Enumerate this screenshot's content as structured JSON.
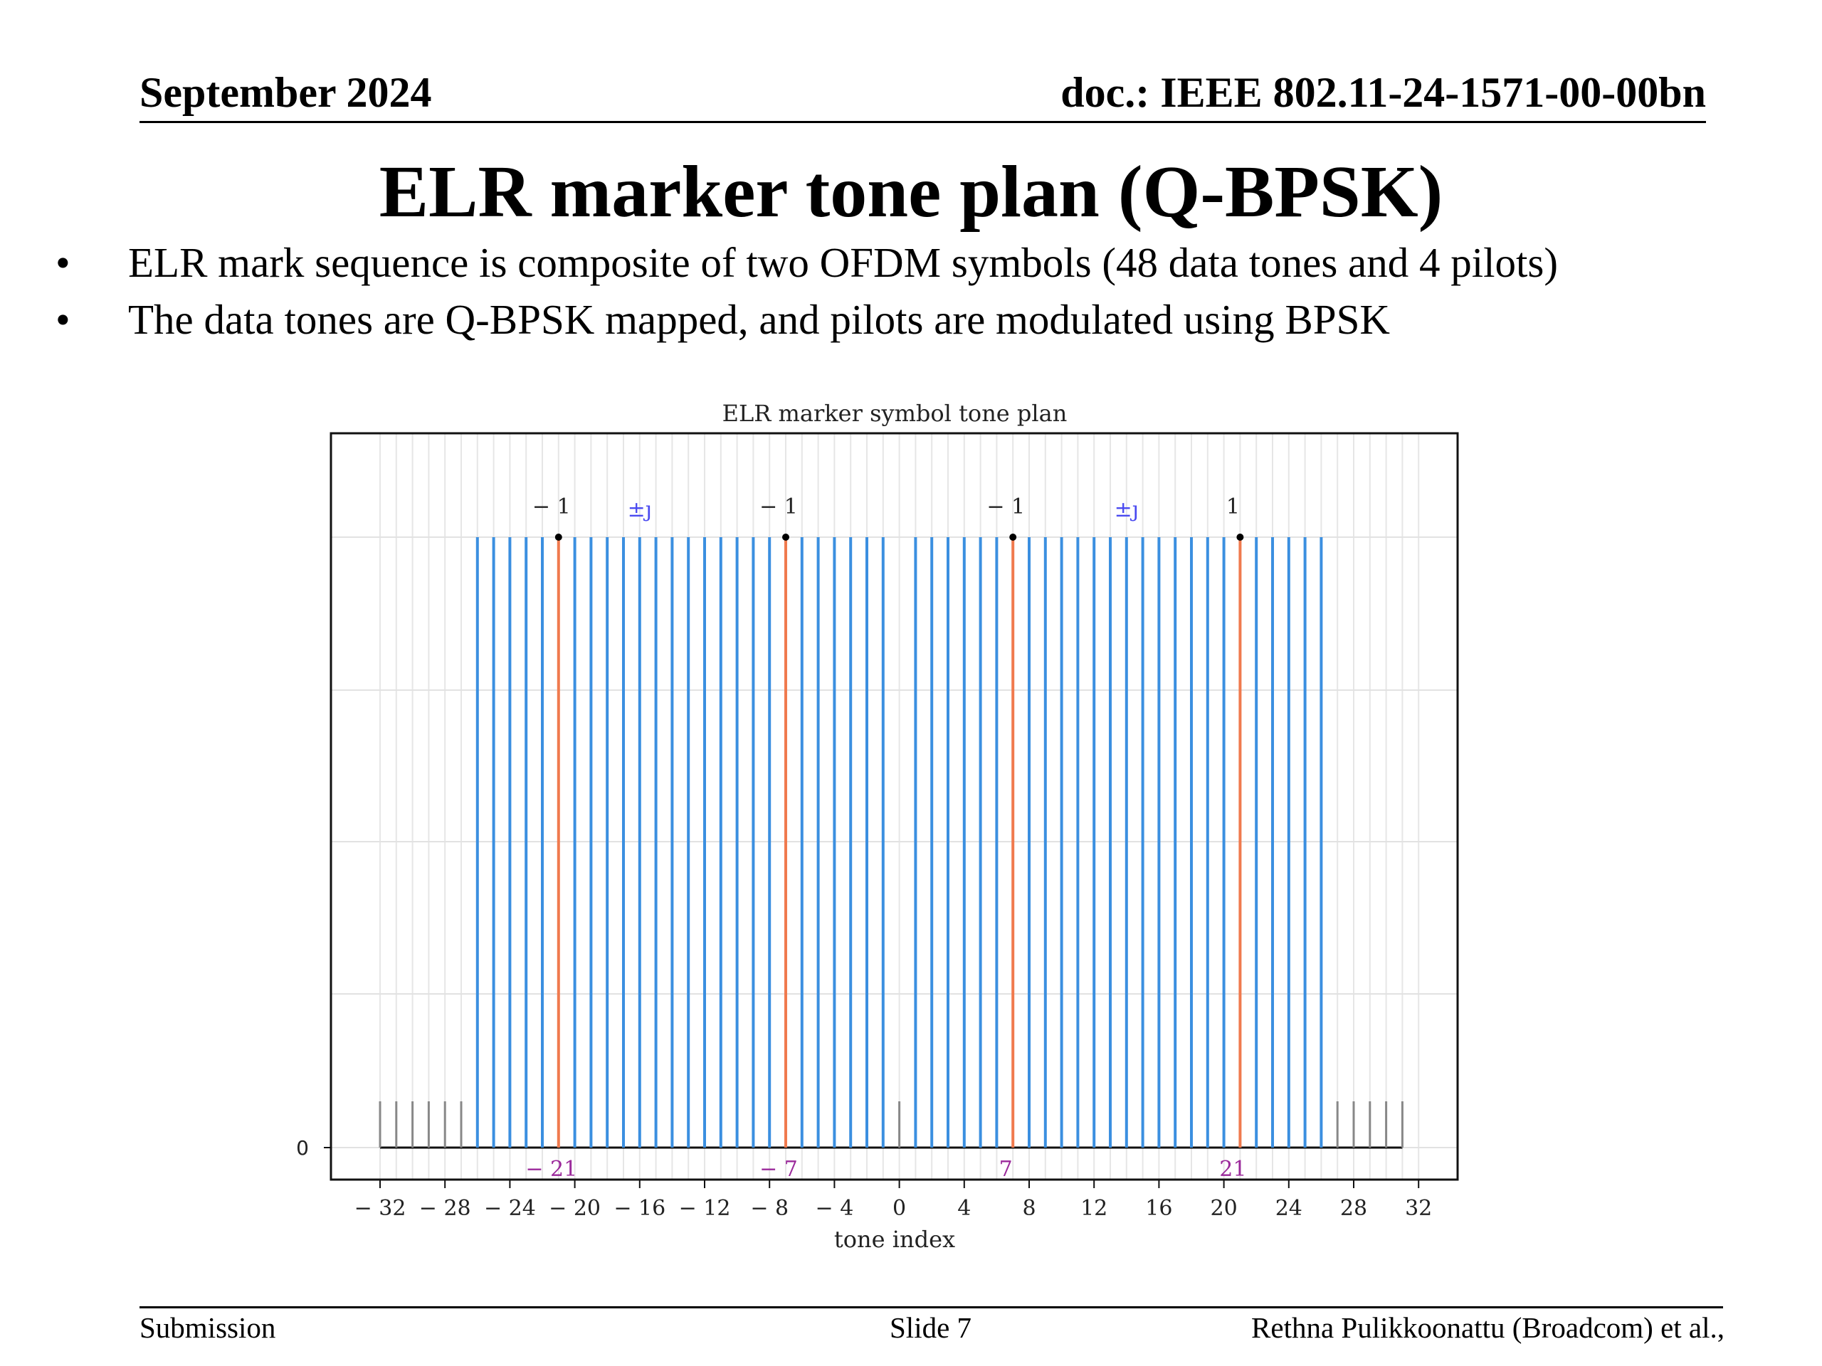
{
  "header": {
    "date": "September 2024",
    "doc": "doc.: IEEE 802.11-24-1571-00-00bn"
  },
  "title": "ELR marker tone plan (Q-BPSK)",
  "bullets": [
    {
      "marker": "•",
      "text": "ELR mark sequence is composite of two OFDM symbols (48 data tones and 4 pilots)"
    },
    {
      "marker": "•",
      "text": "The data tones are Q-BPSK mapped, and pilots are modulated using BPSK"
    }
  ],
  "footer": {
    "left": "Submission",
    "center": "Slide 7",
    "right": "Rethna Pulikkoonattu (Broadcom) et al.,"
  },
  "chart_data": {
    "type": "stem",
    "title": "ELR marker symbol tone plan",
    "xlabel": "tone index",
    "ylabel": "",
    "xlim": [
      -32,
      32
    ],
    "xticks": [
      -32,
      -28,
      -24,
      -20,
      -16,
      -12,
      -8,
      -4,
      0,
      4,
      8,
      12,
      16,
      20,
      24,
      28,
      32
    ],
    "xtick_labels": [
      "− 32",
      "− 28",
      "− 24",
      "− 20",
      "− 16",
      "− 12",
      "− 8",
      "− 4",
      "0",
      "4",
      "8",
      "12",
      "16",
      "20",
      "24",
      "28",
      "32"
    ],
    "yticks": [
      0
    ],
    "ytick_labels": [
      "0"
    ],
    "grid": true,
    "colors": {
      "data": "#3b8fe0",
      "pilot": "#f07a4e",
      "null": "#888888",
      "pilot_index_label": "#9b2a9b",
      "data_label": "#4a4af0",
      "pilot_value_label": "#222222"
    },
    "data_tones": [
      -26,
      -25,
      -24,
      -23,
      -22,
      -20,
      -19,
      -18,
      -17,
      -16,
      -15,
      -14,
      -13,
      -12,
      -11,
      -10,
      -9,
      -8,
      -6,
      -5,
      -4,
      -3,
      -2,
      -1,
      1,
      2,
      3,
      4,
      5,
      6,
      8,
      9,
      10,
      11,
      12,
      13,
      14,
      15,
      16,
      17,
      18,
      19,
      20,
      22,
      23,
      24,
      25,
      26
    ],
    "pilots": [
      {
        "tone": -21,
        "value_label": "− 1",
        "index_label": "− 21"
      },
      {
        "tone": -7,
        "value_label": "− 1",
        "index_label": "− 7"
      },
      {
        "tone": 7,
        "value_label": "− 1",
        "index_label": "7"
      },
      {
        "tone": 21,
        "value_label": "1",
        "index_label": "21"
      }
    ],
    "null_tones": [
      -32,
      -31,
      -30,
      -29,
      -28,
      -27,
      0,
      27,
      28,
      29,
      30,
      31
    ],
    "data_annotations": [
      {
        "tone": -16,
        "label": "±ȷ"
      },
      {
        "tone": 14,
        "label": "±ȷ"
      }
    ]
  }
}
